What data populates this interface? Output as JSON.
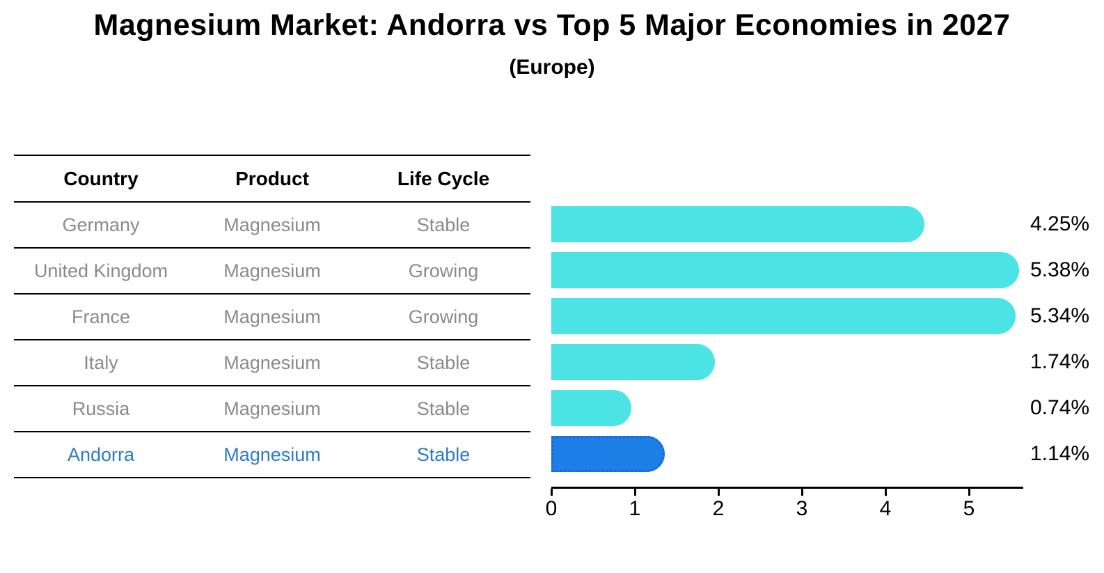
{
  "title": "Magnesium Market: Andorra vs Top 5 Major Economies in 2027",
  "subtitle": "(Europe)",
  "table": {
    "headers": [
      "Country",
      "Product",
      "Life Cycle"
    ],
    "rows": [
      {
        "country": "Germany",
        "product": "Magnesium",
        "life_cycle": "Stable",
        "highlight": false
      },
      {
        "country": "United Kingdom",
        "product": "Magnesium",
        "life_cycle": "Growing",
        "highlight": false
      },
      {
        "country": "France",
        "product": "Magnesium",
        "life_cycle": "Growing",
        "highlight": false
      },
      {
        "country": "Italy",
        "product": "Magnesium",
        "life_cycle": "Stable",
        "highlight": false
      },
      {
        "country": "Russia",
        "product": "Magnesium",
        "life_cycle": "Stable",
        "highlight": false
      },
      {
        "country": "Andorra",
        "product": "Magnesium",
        "life_cycle": "Stable",
        "highlight": true
      }
    ]
  },
  "chart_data": {
    "type": "bar",
    "orientation": "horizontal",
    "title": "Magnesium Market: Andorra vs Top 5 Major Economies in 2027",
    "subtitle": "(Europe)",
    "categories": [
      "Germany",
      "United Kingdom",
      "France",
      "Italy",
      "Russia",
      "Andorra"
    ],
    "values": [
      4.25,
      5.38,
      5.34,
      1.74,
      0.74,
      1.14
    ],
    "value_labels": [
      "4.25%",
      "5.38%",
      "5.34%",
      "1.74%",
      "0.74%",
      "1.14%"
    ],
    "x_ticks": [
      "0",
      "1",
      "2",
      "3",
      "4",
      "5"
    ],
    "xlim": [
      0,
      5.65
    ],
    "grid": false,
    "legend": false,
    "highlight_index": 5,
    "bar_color": "#4BE3E3",
    "highlight_bar_color": "#1E7EE8",
    "highlight_text_color": "#2D7AC9",
    "row_text_color": "#8A8A8A",
    "axis_color": "#000000"
  }
}
